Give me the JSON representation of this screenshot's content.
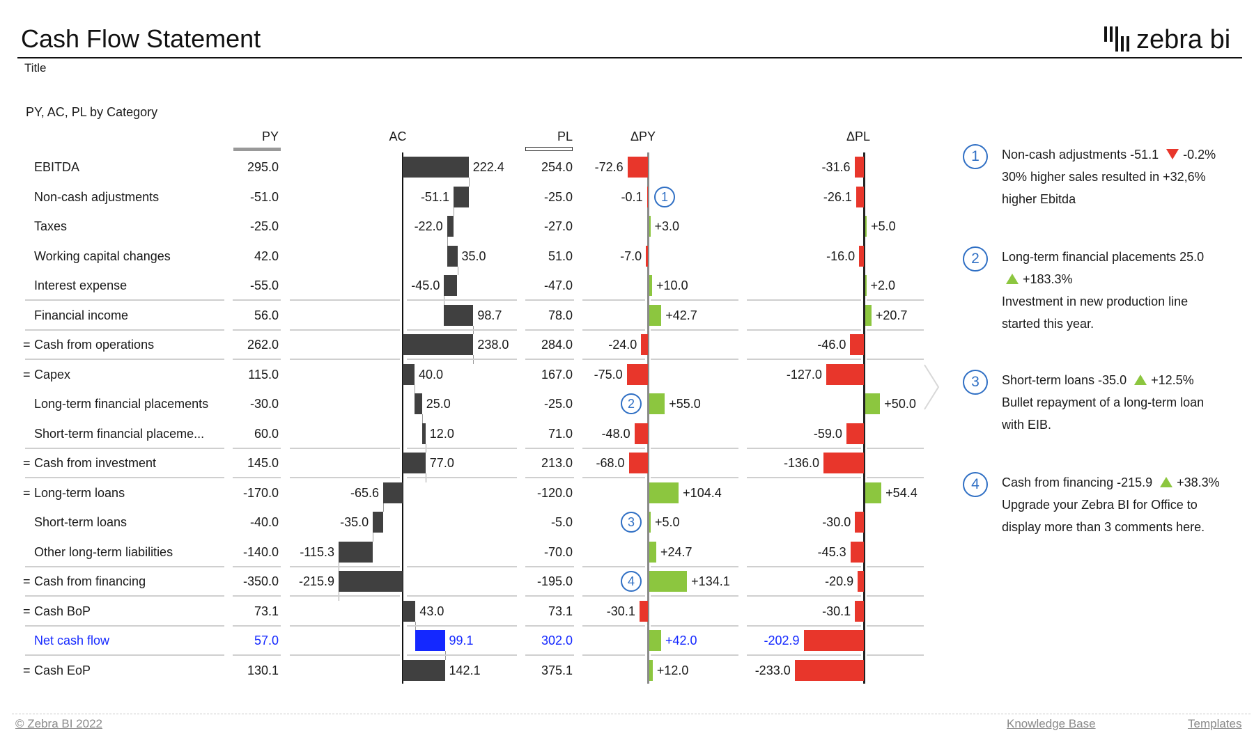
{
  "header": {
    "title": "Cash Flow Statement",
    "subtitle": "Title",
    "logo_text": "zebra bi"
  },
  "chart": {
    "title": "PY, AC, PL by Category",
    "columns": {
      "py": "PY",
      "ac": "AC",
      "pl": "PL",
      "dpy": "ΔPY",
      "dpl": "ΔPL"
    },
    "colors": {
      "ac_bar": "#404040",
      "highlight": "#1428ff",
      "positive": "#8cc63f",
      "negative": "#e8362b",
      "py_marker": "#999999",
      "comment": "#2f6fc4"
    }
  },
  "chart_data": {
    "type": "table",
    "title": "PY, AC, PL by Category",
    "columns": [
      "PY",
      "AC",
      "PL",
      "ΔPY",
      "ΔPL"
    ],
    "rows": [
      {
        "label": "EBITDA",
        "total": false,
        "py": "295.0",
        "ac": "222.4",
        "pl": "254.0",
        "dpy": "-72.6",
        "dpl": "-31.6"
      },
      {
        "label": "Non-cash adjustments",
        "total": false,
        "py": "-51.0",
        "ac": "-51.1",
        "pl": "-25.0",
        "dpy": "-0.1",
        "dpl": "-26.1",
        "comment": "1"
      },
      {
        "label": "Taxes",
        "total": false,
        "py": "-25.0",
        "ac": "-22.0",
        "pl": "-27.0",
        "dpy": "+3.0",
        "dpl": "+5.0"
      },
      {
        "label": "Working capital changes",
        "total": false,
        "py": "42.0",
        "ac": "35.0",
        "pl": "51.0",
        "dpy": "-7.0",
        "dpl": "-16.0"
      },
      {
        "label": "Interest expense",
        "total": false,
        "py": "-55.0",
        "ac": "-45.0",
        "pl": "-47.0",
        "dpy": "+10.0",
        "dpl": "+2.0",
        "separator": true
      },
      {
        "label": "Financial income",
        "total": false,
        "py": "56.0",
        "ac": "98.7",
        "pl": "78.0",
        "dpy": "+42.7",
        "dpl": "+20.7",
        "separator": true
      },
      {
        "label": "Cash from operations",
        "total": true,
        "py": "262.0",
        "ac": "238.0",
        "pl": "284.0",
        "dpy": "-24.0",
        "dpl": "-46.0",
        "separator": true
      },
      {
        "label": "Capex",
        "total": true,
        "py": "115.0",
        "ac": "40.0",
        "pl": "167.0",
        "dpy": "-75.0",
        "dpl": "-127.0"
      },
      {
        "label": "Long-term financial placements",
        "total": false,
        "py": "-30.0",
        "ac": "25.0",
        "pl": "-25.0",
        "dpy": "+55.0",
        "dpl": "+50.0",
        "comment": "2"
      },
      {
        "label": "Short-term financial placeme...",
        "total": false,
        "py": "60.0",
        "ac": "12.0",
        "pl": "71.0",
        "dpy": "-48.0",
        "dpl": "-59.0",
        "separator": true
      },
      {
        "label": "Cash from investment",
        "total": true,
        "py": "145.0",
        "ac": "77.0",
        "pl": "213.0",
        "dpy": "-68.0",
        "dpl": "-136.0",
        "separator": true
      },
      {
        "label": "Long-term loans",
        "total": true,
        "py": "-170.0",
        "ac": "-65.6",
        "pl": "-120.0",
        "dpy": "+104.4",
        "dpl": "+54.4"
      },
      {
        "label": "Short-term loans",
        "total": false,
        "py": "-40.0",
        "ac": "-35.0",
        "pl": "-5.0",
        "dpy": "+5.0",
        "dpl": "-30.0",
        "comment": "3"
      },
      {
        "label": "Other long-term liabilities",
        "total": false,
        "py": "-140.0",
        "ac": "-115.3",
        "pl": "-70.0",
        "dpy": "+24.7",
        "dpl": "-45.3",
        "separator": true
      },
      {
        "label": "Cash from financing",
        "total": true,
        "py": "-350.0",
        "ac": "-215.9",
        "pl": "-195.0",
        "dpy": "+134.1",
        "dpl": "-20.9",
        "comment": "4",
        "separator": true
      },
      {
        "label": "Cash BoP",
        "total": true,
        "py": "73.1",
        "ac": "43.0",
        "pl": "73.1",
        "dpy": "-30.1",
        "dpl": "-30.1",
        "separator": true
      },
      {
        "label": "Net cash flow",
        "total": false,
        "highlight": true,
        "py": "57.0",
        "ac": "99.1",
        "pl": "302.0",
        "dpy": "+42.0",
        "dpl": "-202.9",
        "separator": true
      },
      {
        "label": "Cash EoP",
        "total": true,
        "py": "130.1",
        "ac": "142.1",
        "pl": "375.1",
        "dpy": "+12.0",
        "dpl": "-233.0"
      }
    ],
    "total_prefix": "= "
  },
  "comments": [
    {
      "number": "1",
      "title": "Non-cash adjustments -51.1",
      "delta_icon": "triangle-down",
      "delta": "-0.2%",
      "lines": [
        "30% higher sales resulted in +32,6%",
        "higher Ebitda"
      ]
    },
    {
      "number": "2",
      "title": "Long-term financial placements 25.0",
      "delta_icon": "triangle-up",
      "delta": "+183.3%",
      "lines": [
        "Investment in new production line",
        "started this year."
      ]
    },
    {
      "number": "3",
      "title": "Short-term loans -35.0",
      "delta_icon": "triangle-up",
      "delta": "+12.5%",
      "lines": [
        "Bullet repayment of a long-term loan",
        "with EIB."
      ]
    },
    {
      "number": "4",
      "title": "Cash from financing -215.9",
      "delta_icon": "triangle-up",
      "delta": "+38.3%",
      "lines": [
        "Upgrade your Zebra BI for Office to",
        "display more than 3 comments here."
      ]
    }
  ],
  "footer": {
    "copyright": "© Zebra BI 2022",
    "links": [
      "Knowledge Base",
      "Templates"
    ]
  }
}
